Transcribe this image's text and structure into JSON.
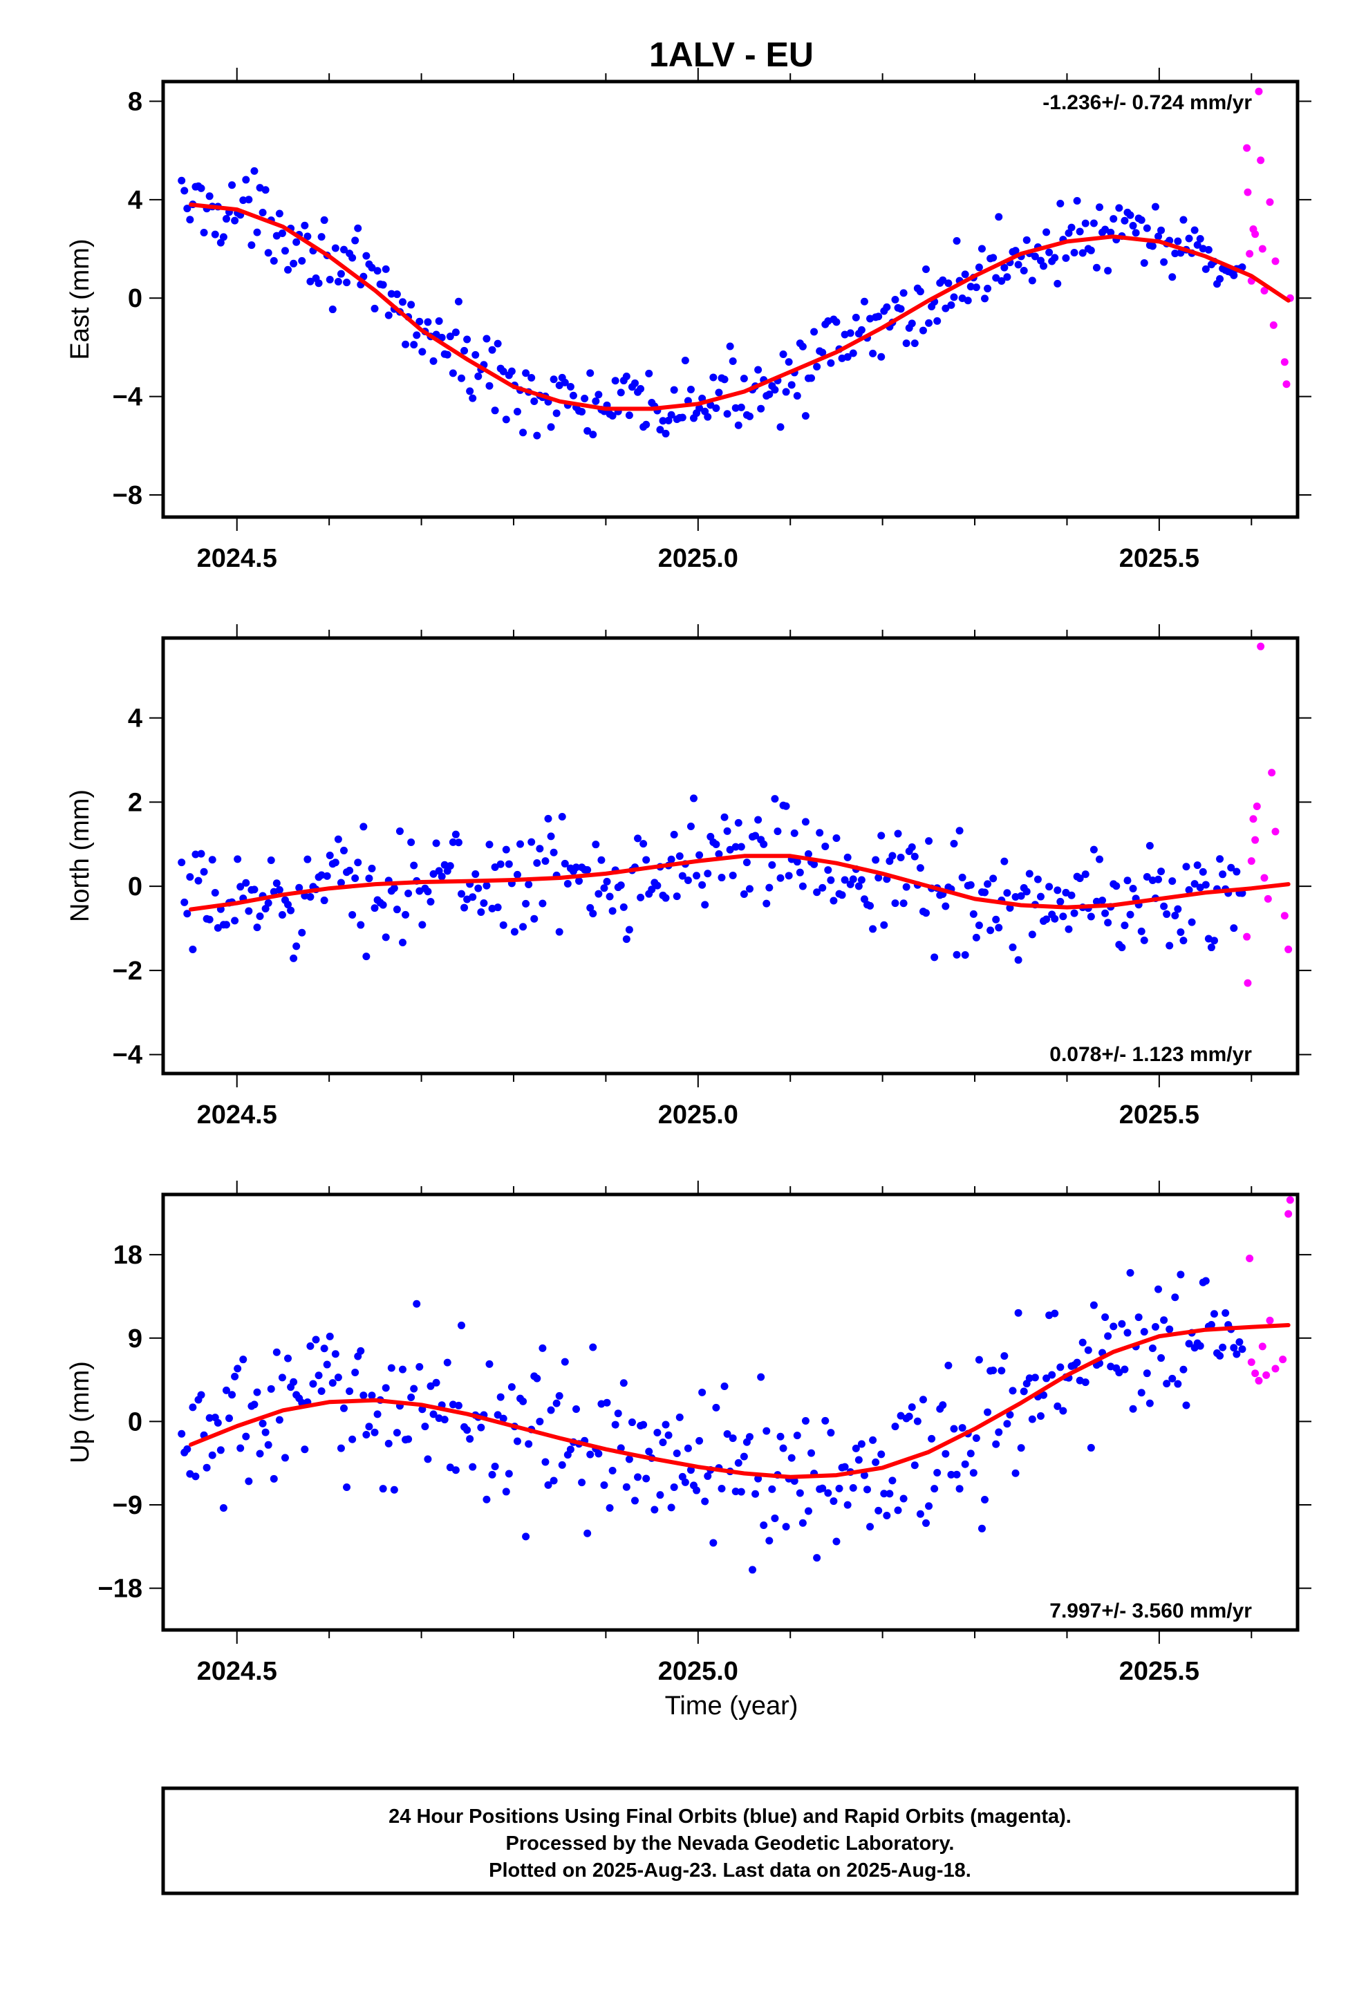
{
  "title": "1ALV - EU",
  "xlabel": "Time (year)",
  "footer": {
    "line1": "24 Hour Positions Using Final Orbits (blue) and Rapid Orbits (magenta).",
    "line2": "Processed by the Nevada Geodetic Laboratory.",
    "line3": "Plotted on 2025-Aug-23. Last data on 2025-Aug-18."
  },
  "colors": {
    "final": "#0000ff",
    "rapid": "#ff00ff",
    "fit": "#ff0000",
    "frame": "#000000"
  },
  "chart_data": [
    {
      "type": "scatter",
      "ylabel": "East (mm)",
      "xlim": [
        2024.42,
        2025.65
      ],
      "ylim": [
        -8.9,
        8.8
      ],
      "yticks": [
        -8,
        -4,
        0,
        4,
        8
      ],
      "xticks": [
        2024.5,
        2025.0,
        2025.5
      ],
      "rate_text": "-1.236+/- 0.724 mm/yr",
      "rate_position": "top-right",
      "fit_curve": {
        "x": [
          2024.45,
          2024.5,
          2024.55,
          2024.6,
          2024.65,
          2024.7,
          2024.75,
          2024.8,
          2024.85,
          2024.9,
          2024.95,
          2025.0,
          2025.05,
          2025.1,
          2025.15,
          2025.2,
          2025.25,
          2025.3,
          2025.35,
          2025.4,
          2025.45,
          2025.5,
          2025.55,
          2025.6,
          2025.64
        ],
        "y": [
          3.8,
          3.6,
          2.9,
          1.7,
          0.3,
          -1.3,
          -2.5,
          -3.6,
          -4.2,
          -4.5,
          -4.5,
          -4.3,
          -3.8,
          -3.0,
          -2.2,
          -1.2,
          -0.1,
          0.9,
          1.8,
          2.3,
          2.5,
          2.3,
          1.7,
          0.9,
          -0.1
        ]
      },
      "series": [
        {
          "name": "Final Orbits",
          "color": "blue",
          "trend": "fit",
          "spread": 1.1,
          "count": 380,
          "x_range": [
            2024.44,
            2025.59
          ]
        },
        {
          "name": "Rapid Orbits",
          "color": "magenta",
          "x": [
            2025.595,
            2025.596,
            2025.598,
            2025.6,
            2025.602,
            2025.604,
            2025.608,
            2025.61,
            2025.612,
            2025.614,
            2025.62,
            2025.624,
            2025.626,
            2025.636,
            2025.638,
            2025.642
          ],
          "y": [
            6.1,
            4.3,
            1.8,
            0.7,
            2.8,
            2.6,
            8.4,
            5.6,
            2.0,
            0.3,
            3.9,
            -1.1,
            1.5,
            -2.6,
            -3.5,
            0.0
          ]
        }
      ]
    },
    {
      "type": "scatter",
      "ylabel": "North (mm)",
      "xlim": [
        2024.42,
        2025.65
      ],
      "ylim": [
        -4.45,
        5.9
      ],
      "yticks": [
        -4,
        -2,
        0,
        2,
        4
      ],
      "xticks": [
        2024.5,
        2025.0,
        2025.5
      ],
      "rate_text": "0.078+/- 1.123 mm/yr",
      "rate_position": "bottom-right",
      "fit_curve": {
        "x": [
          2024.45,
          2024.5,
          2024.55,
          2024.6,
          2024.65,
          2024.7,
          2024.75,
          2024.8,
          2024.85,
          2024.9,
          2024.95,
          2025.0,
          2025.05,
          2025.1,
          2025.15,
          2025.2,
          2025.25,
          2025.3,
          2025.35,
          2025.4,
          2025.45,
          2025.5,
          2025.55,
          2025.6,
          2025.64
        ],
        "y": [
          -0.55,
          -0.4,
          -0.2,
          -0.05,
          0.05,
          0.1,
          0.12,
          0.15,
          0.2,
          0.3,
          0.45,
          0.6,
          0.72,
          0.72,
          0.55,
          0.3,
          0.0,
          -0.3,
          -0.45,
          -0.5,
          -0.45,
          -0.3,
          -0.15,
          -0.05,
          0.05
        ]
      },
      "series": [
        {
          "name": "Final Orbits",
          "color": "blue",
          "trend": "fit",
          "spread": 0.9,
          "count": 380,
          "x_range": [
            2024.44,
            2025.59
          ]
        },
        {
          "name": "Rapid Orbits",
          "color": "magenta",
          "x": [
            2025.595,
            2025.596,
            2025.6,
            2025.602,
            2025.604,
            2025.606,
            2025.61,
            2025.614,
            2025.618,
            2025.622,
            2025.626,
            2025.636,
            2025.64
          ],
          "y": [
            -1.2,
            -2.3,
            0.6,
            1.6,
            1.1,
            1.9,
            5.7,
            0.2,
            -0.3,
            2.7,
            1.3,
            -0.7,
            -1.5
          ]
        }
      ]
    },
    {
      "type": "scatter",
      "ylabel": "Up (mm)",
      "xlim": [
        2024.42,
        2025.65
      ],
      "ylim": [
        -22.5,
        24.5
      ],
      "yticks": [
        -18,
        -9,
        0,
        9,
        18
      ],
      "xticks": [
        2024.5,
        2025.0,
        2025.5
      ],
      "rate_text": "7.997+/- 3.560 mm/yr",
      "rate_position": "bottom-right",
      "fit_curve": {
        "x": [
          2024.45,
          2024.5,
          2024.55,
          2024.6,
          2024.65,
          2024.7,
          2024.75,
          2024.8,
          2024.85,
          2024.9,
          2024.95,
          2025.0,
          2025.05,
          2025.1,
          2025.15,
          2025.2,
          2025.25,
          2025.3,
          2025.35,
          2025.4,
          2025.45,
          2025.5,
          2025.55,
          2025.6,
          2025.64
        ],
        "y": [
          -2.5,
          -0.5,
          1.2,
          2.1,
          2.3,
          1.8,
          0.8,
          -0.5,
          -1.8,
          -3.0,
          -4.0,
          -4.9,
          -5.6,
          -6.0,
          -5.8,
          -5.0,
          -3.3,
          -0.8,
          2.0,
          5.0,
          7.5,
          9.2,
          9.9,
          10.2,
          10.4
        ]
      },
      "series": [
        {
          "name": "Final Orbits",
          "color": "blue",
          "trend": "fit",
          "spread": 6.0,
          "count": 380,
          "x_range": [
            2024.44,
            2025.59
          ]
        },
        {
          "name": "Rapid Orbits",
          "color": "magenta",
          "x": [
            2025.598,
            2025.6,
            2025.604,
            2025.608,
            2025.612,
            2025.616,
            2025.62,
            2025.626,
            2025.634,
            2025.64,
            2025.642
          ],
          "y": [
            17.6,
            6.4,
            5.2,
            4.4,
            8.1,
            5.0,
            10.9,
            5.7,
            6.7,
            22.4,
            23.9
          ]
        }
      ]
    }
  ]
}
